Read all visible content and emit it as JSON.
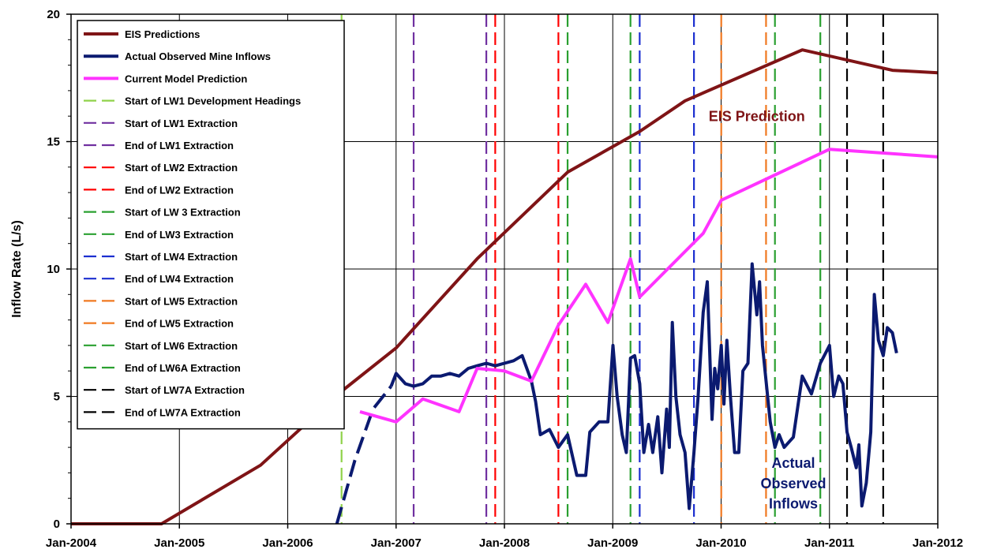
{
  "chart_data": {
    "type": "line",
    "title": "",
    "xlabel": "",
    "ylabel": "Inflow Rate (L/s)",
    "xlim": [
      "2004-01-01",
      "2012-01-01"
    ],
    "ylim": [
      0,
      20
    ],
    "x_ticks": [
      "Jan-2004",
      "Jan-2005",
      "Jan-2006",
      "Jan-2007",
      "Jan-2008",
      "Jan-2009",
      "Jan-2010",
      "Jan-2011",
      "Jan-2012"
    ],
    "y_ticks": [
      "0",
      "5",
      "10",
      "15",
      "20"
    ],
    "grid": "major gridlines on both axes",
    "legend_position": "upper-left",
    "series": [
      {
        "name": "EIS Predictions",
        "color": "#7f1416",
        "style": "solid",
        "points": [
          [
            "2004-01-01",
            0
          ],
          [
            "2004-11-01",
            0
          ],
          [
            "2005-10-01",
            2.3
          ],
          [
            "2006-07-01",
            5.2
          ],
          [
            "2007-01-01",
            6.9
          ],
          [
            "2007-10-01",
            10.4
          ],
          [
            "2008-08-01",
            13.8
          ],
          [
            "2009-04-01",
            15.4
          ],
          [
            "2009-09-01",
            16.6
          ],
          [
            "2010-10-01",
            18.6
          ],
          [
            "2011-08-01",
            17.8
          ],
          [
            "2012-01-01",
            17.7
          ]
        ]
      },
      {
        "name": "Actual Observed Mine Inflows",
        "color": "#0b1a70",
        "style": "solid",
        "points": [
          [
            "2006-12-15",
            5.4
          ],
          [
            "2007-01-01",
            5.9
          ],
          [
            "2007-02-01",
            5.5
          ],
          [
            "2007-03-01",
            5.4
          ],
          [
            "2007-04-01",
            5.5
          ],
          [
            "2007-05-01",
            5.8
          ],
          [
            "2007-06-01",
            5.8
          ],
          [
            "2007-07-01",
            5.9
          ],
          [
            "2007-08-01",
            5.8
          ],
          [
            "2007-09-01",
            6.1
          ],
          [
            "2007-10-01",
            6.2
          ],
          [
            "2007-11-01",
            6.3
          ],
          [
            "2007-12-01",
            6.2
          ],
          [
            "2008-01-01",
            6.3
          ],
          [
            "2008-02-01",
            6.4
          ],
          [
            "2008-03-01",
            6.6
          ],
          [
            "2008-04-01",
            5.6
          ],
          [
            "2008-04-15",
            4.8
          ],
          [
            "2008-05-01",
            3.5
          ],
          [
            "2008-06-01",
            3.7
          ],
          [
            "2008-07-01",
            3.0
          ],
          [
            "2008-08-01",
            3.5
          ],
          [
            "2008-09-01",
            1.9
          ],
          [
            "2008-10-01",
            1.9
          ],
          [
            "2008-10-15",
            3.6
          ],
          [
            "2008-11-15",
            4.0
          ],
          [
            "2008-12-15",
            4.0
          ],
          [
            "2009-01-01",
            7.0
          ],
          [
            "2009-01-15",
            5.0
          ],
          [
            "2009-02-01",
            3.5
          ],
          [
            "2009-02-15",
            2.8
          ],
          [
            "2009-03-01",
            6.5
          ],
          [
            "2009-03-15",
            6.6
          ],
          [
            "2009-04-01",
            5.5
          ],
          [
            "2009-04-15",
            2.8
          ],
          [
            "2009-05-01",
            3.9
          ],
          [
            "2009-05-15",
            2.8
          ],
          [
            "2009-06-01",
            4.2
          ],
          [
            "2009-06-15",
            2.0
          ],
          [
            "2009-07-01",
            4.5
          ],
          [
            "2009-07-10",
            3.0
          ],
          [
            "2009-07-20",
            7.9
          ],
          [
            "2009-08-01",
            5.0
          ],
          [
            "2009-08-15",
            3.5
          ],
          [
            "2009-09-01",
            2.8
          ],
          [
            "2009-09-15",
            0.6
          ],
          [
            "2009-10-01",
            2.8
          ],
          [
            "2009-10-15",
            5.0
          ],
          [
            "2009-11-01",
            8.3
          ],
          [
            "2009-11-15",
            9.5
          ],
          [
            "2009-12-01",
            4.1
          ],
          [
            "2009-12-10",
            6.1
          ],
          [
            "2009-12-20",
            5.3
          ],
          [
            "2010-01-01",
            7.0
          ],
          [
            "2010-01-10",
            4.7
          ],
          [
            "2010-01-20",
            7.2
          ],
          [
            "2010-02-01",
            5.0
          ],
          [
            "2010-02-15",
            2.8
          ],
          [
            "2010-03-01",
            2.8
          ],
          [
            "2010-03-15",
            6.0
          ],
          [
            "2010-04-01",
            6.3
          ],
          [
            "2010-04-15",
            10.2
          ],
          [
            "2010-05-01",
            8.2
          ],
          [
            "2010-05-10",
            9.5
          ],
          [
            "2010-05-20",
            7.0
          ],
          [
            "2010-06-15",
            4.0
          ],
          [
            "2010-07-01",
            3.0
          ],
          [
            "2010-07-15",
            3.5
          ],
          [
            "2010-08-01",
            3.0
          ],
          [
            "2010-09-01",
            3.4
          ],
          [
            "2010-10-01",
            5.8
          ],
          [
            "2010-11-01",
            5.1
          ],
          [
            "2010-12-01",
            6.3
          ],
          [
            "2011-01-01",
            7.0
          ],
          [
            "2011-01-15",
            5.0
          ],
          [
            "2011-02-01",
            5.8
          ],
          [
            "2011-02-15",
            5.5
          ],
          [
            "2011-03-01",
            3.6
          ],
          [
            "2011-03-15",
            3.0
          ],
          [
            "2011-04-01",
            2.2
          ],
          [
            "2011-04-10",
            3.1
          ],
          [
            "2011-04-20",
            0.7
          ],
          [
            "2011-05-05",
            1.6
          ],
          [
            "2011-05-20",
            3.6
          ],
          [
            "2011-06-01",
            9.0
          ],
          [
            "2011-06-15",
            7.2
          ],
          [
            "2011-07-01",
            6.6
          ],
          [
            "2011-07-15",
            7.7
          ],
          [
            "2011-08-01",
            7.5
          ],
          [
            "2011-08-15",
            6.7
          ]
        ]
      },
      {
        "name": "Actual Observed Mine Inflows (early segment, dashed)",
        "color": "#0b1a70",
        "style": "dashed",
        "points": [
          [
            "2006-06-15",
            0
          ],
          [
            "2006-08-15",
            2.5
          ],
          [
            "2006-10-15",
            4.5
          ],
          [
            "2006-12-15",
            5.4
          ]
        ]
      },
      {
        "name": "Current Model Prediction",
        "color": "#ff33ff",
        "style": "solid",
        "points": [
          [
            "2006-09-01",
            4.4
          ],
          [
            "2007-01-01",
            4.0
          ],
          [
            "2007-04-01",
            4.9
          ],
          [
            "2007-08-01",
            4.4
          ],
          [
            "2007-10-01",
            6.1
          ],
          [
            "2008-01-01",
            6.0
          ],
          [
            "2008-04-01",
            5.6
          ],
          [
            "2008-07-01",
            7.8
          ],
          [
            "2008-10-01",
            9.4
          ],
          [
            "2008-12-15",
            7.9
          ],
          [
            "2009-03-01",
            10.4
          ],
          [
            "2009-04-01",
            8.9
          ],
          [
            "2009-11-01",
            11.4
          ],
          [
            "2010-01-01",
            12.7
          ],
          [
            "2011-01-01",
            14.7
          ],
          [
            "2012-01-01",
            14.4
          ]
        ]
      }
    ],
    "event_lines": [
      {
        "name": "Start of LW1 Development Headings",
        "color": "#8fd24a",
        "date": "2006-07-01"
      },
      {
        "name": "Start of LW1 Extraction",
        "color": "#7030a0",
        "date": "2007-03-01"
      },
      {
        "name": "End of LW1 Extraction",
        "color": "#7030a0",
        "date": "2007-11-01"
      },
      {
        "name": "Start of LW2 Extraction",
        "color": "#ff0000",
        "date": "2007-12-01"
      },
      {
        "name": "End of LW2 Extraction",
        "color": "#ff0000",
        "date": "2008-07-01"
      },
      {
        "name": "Start of LW 3 Extraction",
        "color": "#2aa030",
        "date": "2008-08-01"
      },
      {
        "name": "End of LW3 Extraction",
        "color": "#2aa030",
        "date": "2009-03-01"
      },
      {
        "name": "Start of LW4 Extraction",
        "color": "#1c2fd0",
        "date": "2009-04-01"
      },
      {
        "name": "End of LW4 Extraction",
        "color": "#1c2fd0",
        "date": "2009-10-01"
      },
      {
        "name": "Start of LW5 Extraction",
        "color": "#f07820",
        "date": "2010-01-01"
      },
      {
        "name": "End of LW5 Extraction",
        "color": "#f07820",
        "date": "2010-06-01"
      },
      {
        "name": "Start of LW6 Extraction",
        "color": "#2aa030",
        "date": "2010-07-01"
      },
      {
        "name": "End of LW6A Extraction",
        "color": "#2aa030",
        "date": "2010-12-01"
      },
      {
        "name": "Start of LW7A Extraction",
        "color": "#000000",
        "date": "2011-03-01"
      },
      {
        "name": "End of LW7A Extraction",
        "color": "#000000",
        "date": "2011-07-01"
      }
    ],
    "legend_entries": [
      {
        "label": "EIS Predictions",
        "color": "#7f1416",
        "style": "solid"
      },
      {
        "label": "Actual Observed Mine Inflows",
        "color": "#0b1a70",
        "style": "solid"
      },
      {
        "label": "Current Model Prediction",
        "color": "#ff33ff",
        "style": "solid"
      },
      {
        "label": "Start of LW1 Development Headings",
        "color": "#8fd24a",
        "style": "dashed"
      },
      {
        "label": "Start of LW1 Extraction",
        "color": "#7030a0",
        "style": "dashed"
      },
      {
        "label": "End of LW1 Extraction",
        "color": "#7030a0",
        "style": "dashed"
      },
      {
        "label": "Start of LW2 Extraction",
        "color": "#ff0000",
        "style": "dashed"
      },
      {
        "label": "End of LW2 Extraction",
        "color": "#ff0000",
        "style": "dashed"
      },
      {
        "label": "Start of LW 3 Extraction",
        "color": "#2aa030",
        "style": "dashed"
      },
      {
        "label": "End of LW3 Extraction",
        "color": "#2aa030",
        "style": "dashed"
      },
      {
        "label": "Start of LW4 Extraction",
        "color": "#1c2fd0",
        "style": "dashed"
      },
      {
        "label": "End of LW4 Extraction",
        "color": "#1c2fd0",
        "style": "dashed"
      },
      {
        "label": "Start of LW5 Extraction",
        "color": "#f07820",
        "style": "dashed"
      },
      {
        "label": "End of LW5 Extraction",
        "color": "#f07820",
        "style": "dashed"
      },
      {
        "label": "Start of LW6 Extraction",
        "color": "#2aa030",
        "style": "dashed"
      },
      {
        "label": "End of LW6A Extraction",
        "color": "#2aa030",
        "style": "dashed"
      },
      {
        "label": "Start of LW7A Extraction",
        "color": "#000000",
        "style": "dashed"
      },
      {
        "label": "End of LW7A Extraction",
        "color": "#000000",
        "style": "dashed"
      }
    ],
    "annotations": [
      {
        "text": "EIS Prediction",
        "color": "#7f1416",
        "x": "2010-05-01",
        "y": 15.8
      },
      {
        "text": "Actual",
        "color": "#0b1a70",
        "x": "2010-09-01",
        "y": 2.2
      },
      {
        "text": "Observed",
        "color": "#0b1a70",
        "x": "2010-09-01",
        "y": 1.4
      },
      {
        "text": "Inflows",
        "color": "#0b1a70",
        "x": "2010-09-01",
        "y": 0.6
      }
    ]
  }
}
